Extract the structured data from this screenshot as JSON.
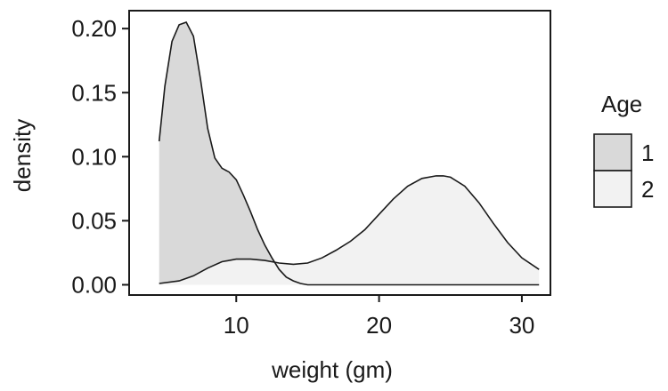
{
  "chart_data": {
    "type": "area",
    "xlabel": "weight (gm)",
    "ylabel": "density",
    "xlim": [
      2.5,
      32
    ],
    "ylim": [
      -0.008,
      0.214
    ],
    "x_ticks": [
      10,
      20,
      30
    ],
    "y_ticks": [
      0.0,
      0.05,
      0.1,
      0.15,
      0.2
    ],
    "y_tick_labels": [
      "0.00",
      "0.05",
      "0.10",
      "0.15",
      "0.20"
    ],
    "grid": false,
    "legend": {
      "title": "Age",
      "position": "right"
    },
    "series": [
      {
        "name": "1",
        "color": "#d9d9d9",
        "x": [
          4.6,
          5.0,
          5.5,
          6.0,
          6.5,
          7.0,
          7.5,
          8.0,
          8.5,
          9.0,
          9.5,
          10.0,
          10.5,
          11.0,
          11.5,
          12.0,
          12.5,
          13.0,
          13.5,
          14.0,
          14.5,
          15.0,
          31.2
        ],
        "y": [
          0.112,
          0.155,
          0.19,
          0.203,
          0.205,
          0.194,
          0.16,
          0.122,
          0.099,
          0.091,
          0.088,
          0.082,
          0.07,
          0.057,
          0.043,
          0.031,
          0.021,
          0.012,
          0.006,
          0.003,
          0.001,
          0.0,
          0.0
        ]
      },
      {
        "name": "2",
        "color": "#f2f2f2",
        "x": [
          4.6,
          6.0,
          7.0,
          8.0,
          9.0,
          10.0,
          11.0,
          12.0,
          13.0,
          14.0,
          15.0,
          16.0,
          17.0,
          18.0,
          19.0,
          20.0,
          21.0,
          22.0,
          23.0,
          24.0,
          24.5,
          25.0,
          26.0,
          27.0,
          28.0,
          29.0,
          30.0,
          31.2
        ],
        "y": [
          0.001,
          0.003,
          0.007,
          0.013,
          0.018,
          0.02,
          0.02,
          0.019,
          0.017,
          0.016,
          0.017,
          0.021,
          0.027,
          0.034,
          0.043,
          0.055,
          0.067,
          0.077,
          0.083,
          0.085,
          0.085,
          0.084,
          0.077,
          0.064,
          0.048,
          0.033,
          0.021,
          0.012
        ]
      }
    ]
  }
}
